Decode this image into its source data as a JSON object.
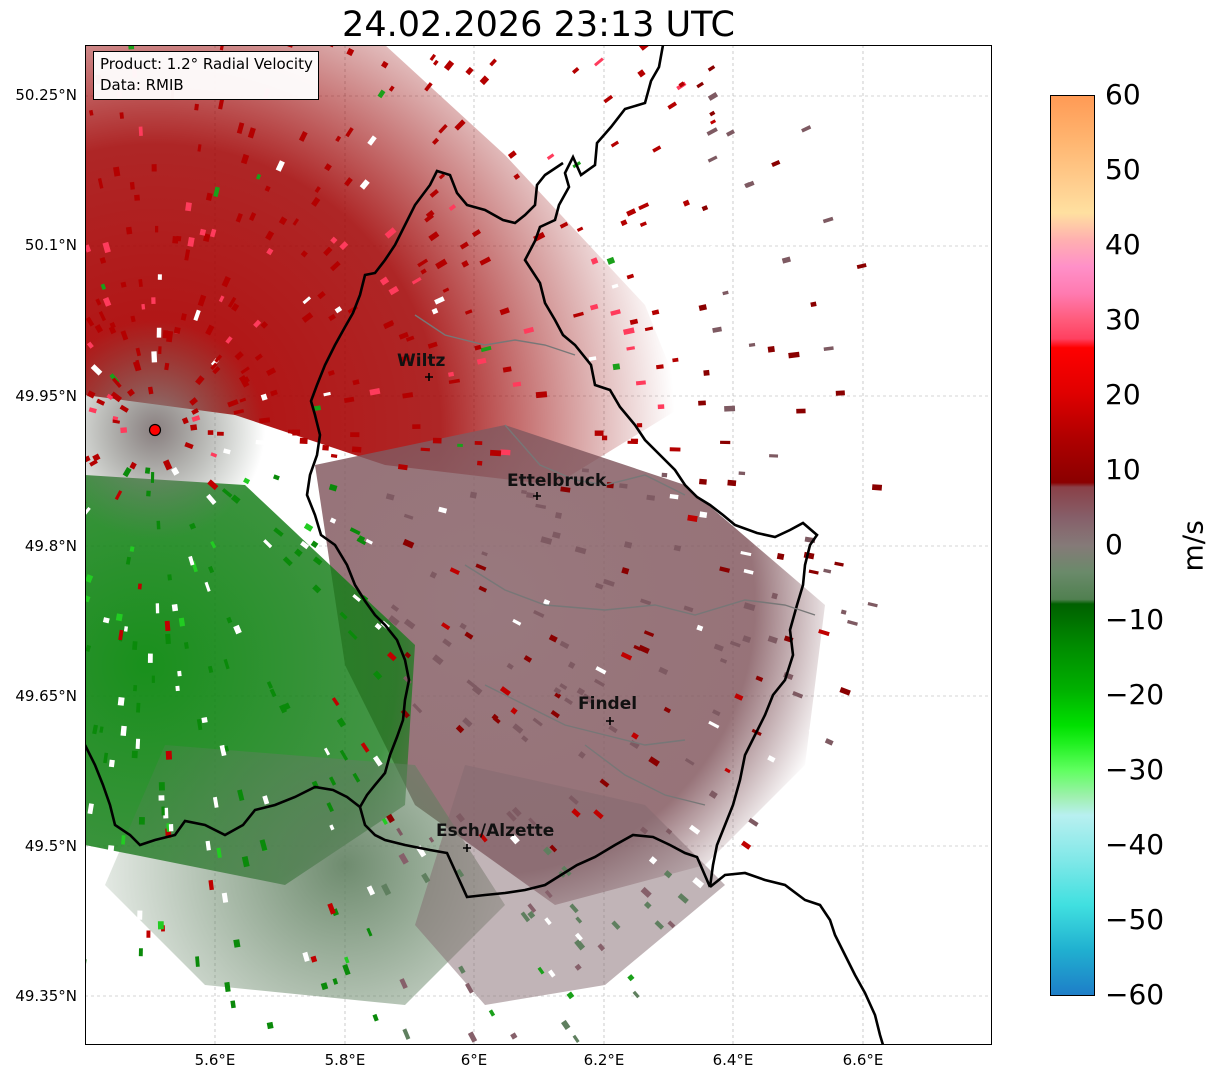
{
  "title": "24.02.2026 23:13 UTC",
  "info": {
    "product": "Product: 1.2° Radial Velocity",
    "data": "Data: RMIB"
  },
  "map": {
    "lat_ticks": [
      "50.25°N",
      "50.1°N",
      "49.95°N",
      "49.8°N",
      "49.65°N",
      "49.5°N",
      "49.35°N"
    ],
    "lon_ticks": [
      "5.6°E",
      "5.8°E",
      "6°E",
      "6.2°E",
      "6.4°E",
      "6.6°E"
    ],
    "cities": [
      {
        "name": "Wiltz"
      },
      {
        "name": "Ettelbruck"
      },
      {
        "name": "Findel"
      },
      {
        "name": "Esch/Alzette"
      }
    ],
    "radar_site_color": "#ff0000"
  },
  "colorbar": {
    "label": "m/s",
    "ticks": [
      "60",
      "50",
      "40",
      "30",
      "20",
      "10",
      "0",
      "−10",
      "−20",
      "−30",
      "−40",
      "−50",
      "−60"
    ],
    "range": [
      -60,
      60
    ]
  }
}
